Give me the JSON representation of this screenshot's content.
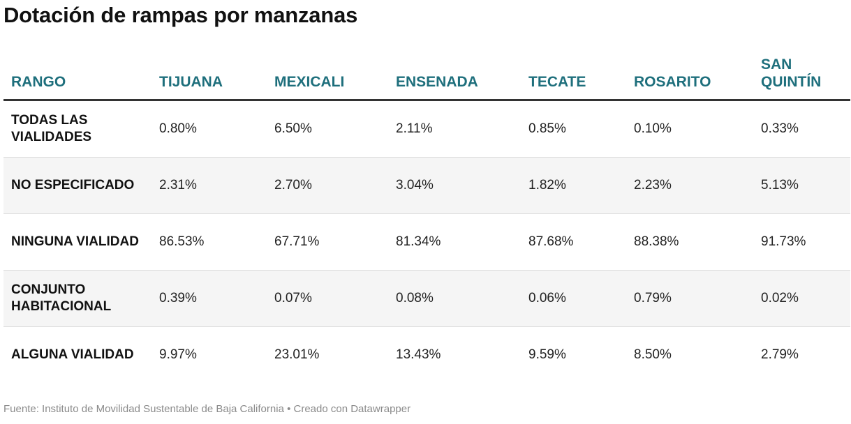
{
  "title": "Dotación de rampas por manzanas",
  "footer": "Fuente: Instituto de Movilidad Sustentable de Baja California • Creado con Datawrapper",
  "colors": {
    "header_text": "#1e6f7c",
    "row_shade": "#f5f5f5",
    "rule": "#333333"
  },
  "chart_data": {
    "type": "table",
    "columns": [
      "RANGO",
      "TIJUANA",
      "MEXICALI",
      "ENSENADA",
      "TECATE",
      "ROSARITO",
      "SAN QUINTÍN"
    ],
    "rows": [
      {
        "label": "TODAS LAS VIALIDADES",
        "values": [
          "0.80%",
          "6.50%",
          "2.11%",
          "0.85%",
          "0.10%",
          "0.33%"
        ]
      },
      {
        "label": "NO ESPECIFICADO",
        "values": [
          "2.31%",
          "2.70%",
          "3.04%",
          "1.82%",
          "2.23%",
          "5.13%"
        ]
      },
      {
        "label": "NINGUNA VIALIDAD",
        "values": [
          "86.53%",
          "67.71%",
          "81.34%",
          "87.68%",
          "88.38%",
          "91.73%"
        ]
      },
      {
        "label": "CONJUNTO HABITACIONAL",
        "values": [
          "0.39%",
          "0.07%",
          "0.08%",
          "0.06%",
          "0.79%",
          "0.02%"
        ]
      },
      {
        "label": "ALGUNA VIALIDAD",
        "values": [
          "9.97%",
          "23.01%",
          "13.43%",
          "9.59%",
          "8.50%",
          "2.79%"
        ]
      }
    ]
  }
}
